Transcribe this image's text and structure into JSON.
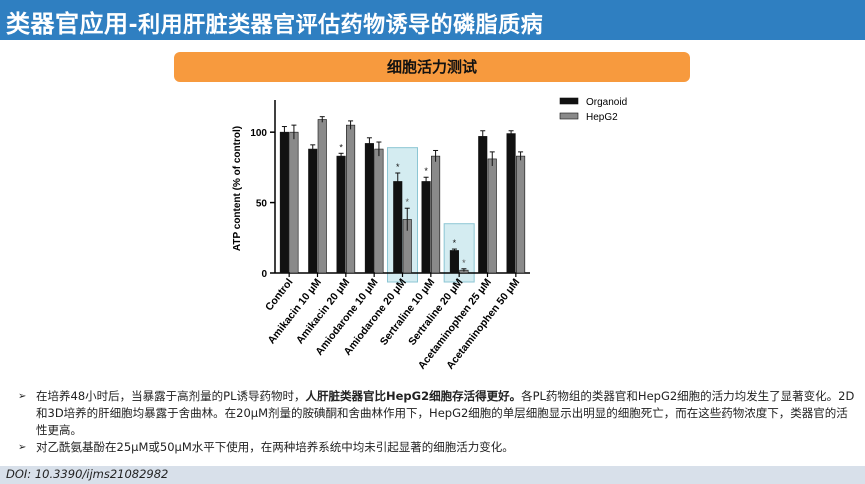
{
  "header": {
    "title_bold": "类器官应用",
    "title_rest": "-利用肝脏类器官评估药物诱导的磷脂质病"
  },
  "banner": {
    "label": "细胞活力测试"
  },
  "chart_data": {
    "type": "bar",
    "ylabel": "ATP content (% of control)",
    "ylim": [
      0,
      120
    ],
    "yticks": [
      0,
      50,
      100
    ],
    "categories": [
      "Control",
      "Amikacin 10 μM",
      "Amikacin 20 μM",
      "Amiodarone 10 μM",
      "Amiodarone 20 μM",
      "Sertraline 10 μM",
      "Sertraline 20 μM",
      "Acetaminophen 25 μM",
      "Acetaminophen 50 μM"
    ],
    "series": [
      {
        "name": "Organoid",
        "color": "#111111",
        "values": [
          100,
          88,
          83,
          92,
          65,
          65,
          16,
          97,
          99
        ],
        "errors": [
          4,
          3,
          2,
          4,
          6,
          3,
          1,
          4,
          2
        ]
      },
      {
        "name": "HepG2",
        "color": "#8a8a8a",
        "values": [
          100,
          109,
          105,
          88,
          38,
          83,
          2,
          81,
          83
        ],
        "errors": [
          5,
          2,
          3,
          5,
          8,
          4,
          1,
          5,
          3
        ]
      }
    ],
    "significance": [
      {
        "category": 2,
        "series": 0,
        "label": "*"
      },
      {
        "category": 4,
        "series": 0,
        "label": "*"
      },
      {
        "category": 4,
        "series": 1,
        "label": "*"
      },
      {
        "category": 5,
        "series": 0,
        "label": "*"
      },
      {
        "category": 6,
        "series": 0,
        "label": "*"
      },
      {
        "category": 6,
        "series": 1,
        "label": "*"
      }
    ],
    "highlight_categories": [
      4,
      6
    ],
    "legend_position": "top-right"
  },
  "bullets": [
    {
      "pre": "在培养48小时后，当暴露于高剂量的PL诱导药物时，",
      "bold": "人肝脏类器官比HepG2细胞存活得更好。",
      "post": "各PL药物组的类器官和HepG2细胞的活力均发生了显著变化。2D和3D培养的肝细胞均暴露于舍曲林。在20μM剂量的胺碘酮和舍曲林作用下，HepG2细胞的单层细胞显示出明显的细胞死亡，而在这些药物浓度下，类器官的活性更高。"
    },
    {
      "pre": "对乙酰氨基酚在25μM或50μM水平下使用，在两种培养系统中均未引起显著的细胞活力变化。",
      "bold": "",
      "post": ""
    }
  ],
  "footer": {
    "doi": "DOI: 10.3390/ijms21082982"
  }
}
